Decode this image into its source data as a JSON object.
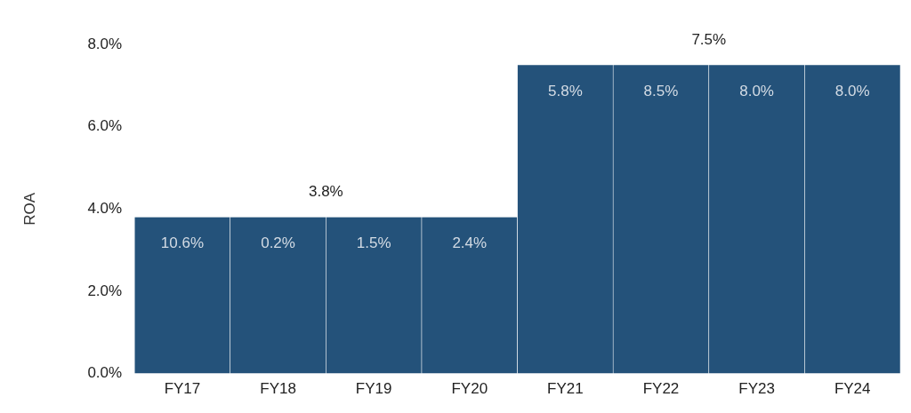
{
  "chart_data": {
    "type": "bar",
    "y_label": "ROA",
    "categories": [
      "FY17",
      "FY18",
      "FY19",
      "FY20",
      "FY21",
      "FY22",
      "FY23",
      "FY24"
    ],
    "groups": [
      {
        "categories": [
          "FY17",
          "FY18",
          "FY19",
          "FY20"
        ],
        "value": 3.8,
        "label": "3.8%"
      },
      {
        "categories": [
          "FY21",
          "FY22",
          "FY23",
          "FY24"
        ],
        "value": 7.5,
        "label": "7.5%"
      }
    ],
    "annual_values": [
      10.6,
      0.2,
      1.5,
      2.4,
      5.8,
      8.5,
      8.0,
      8.0
    ],
    "annual_labels": [
      "10.6%",
      "0.2%",
      "1.5%",
      "2.4%",
      "5.8%",
      "8.5%",
      "8.0%",
      "8.0%"
    ],
    "color": "#24527a",
    "ylim": [
      0,
      8
    ],
    "yticks": [
      {
        "value": 0,
        "label": "0.0%"
      },
      {
        "value": 2,
        "label": "2.0%"
      },
      {
        "value": 4,
        "label": "4.0%"
      },
      {
        "value": 6,
        "label": "6.0%"
      },
      {
        "value": 8,
        "label": "8.0%"
      }
    ],
    "grid": false,
    "data_labels": true
  }
}
